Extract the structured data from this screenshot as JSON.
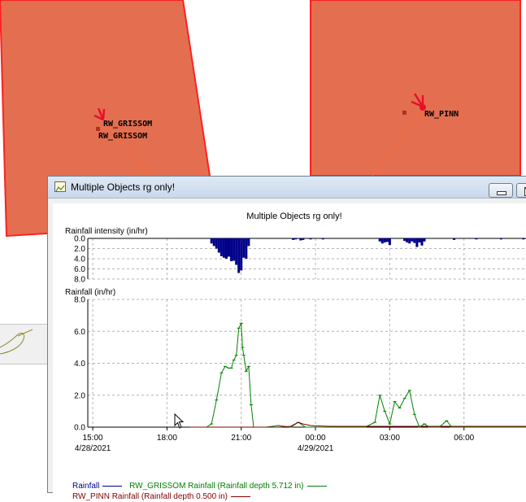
{
  "map": {
    "gauges": [
      {
        "label_1": "RW_GRISSOM",
        "label_2": "RW_GRISSOM"
      },
      {
        "label_1": "RW_PINN"
      }
    ],
    "colors": {
      "polygon_fill": "#e36f50",
      "polygon_border": "#ff2020",
      "gauge": "#e8102a",
      "link": "#ff6a3a"
    }
  },
  "window": {
    "title": "Multiple Objects rg only!"
  },
  "chart_data": [
    {
      "type": "bar",
      "title": "Multiple Objects rg only!",
      "ylabel": "Rainfall intensity (in/hr)",
      "ylim": [
        0,
        8
      ],
      "y_inverted": true,
      "yticks": [
        "0.0",
        "2.0",
        "4.0",
        "6.0",
        "8.0"
      ],
      "grid": true,
      "color": "#00008b",
      "series": [
        {
          "name": "Rainfall",
          "x_hours": [
            19.8,
            19.9,
            20.0,
            20.1,
            20.2,
            20.3,
            20.4,
            20.5,
            20.6,
            20.7,
            20.8,
            20.9,
            21.0,
            21.1,
            21.2,
            21.3,
            23.1,
            23.2,
            23.4,
            23.5,
            23.8,
            24.3,
            26.6,
            26.7,
            26.8,
            26.9,
            27.0,
            27.6,
            27.7,
            27.8,
            27.9,
            28.0,
            28.1,
            28.2,
            28.3,
            28.4,
            29.6,
            30.5,
            31.5,
            32.4
          ],
          "values": [
            1.0,
            1.5,
            2.0,
            2.8,
            3.5,
            3.8,
            4.0,
            3.6,
            4.5,
            4.4,
            5.2,
            6.8,
            6.3,
            3.8,
            4.0,
            1.5,
            0.3,
            0.2,
            0.4,
            0.3,
            0.2,
            0.2,
            0.6,
            1.0,
            0.8,
            0.7,
            1.3,
            0.5,
            0.8,
            1.0,
            0.6,
            0.9,
            1.7,
            0.8,
            1.4,
            0.6,
            0.3,
            0.2,
            0.2,
            0.2
          ]
        }
      ]
    },
    {
      "type": "line",
      "ylabel": "Rainfall (in/hr)",
      "ylim": [
        0,
        8
      ],
      "yticks": [
        "0.0",
        "2.0",
        "4.0",
        "6.0",
        "8.0"
      ],
      "x_range_hours": [
        14.8,
        32.9
      ],
      "xticks": [
        {
          "h": 15,
          "label": "15:00",
          "date": "4/28/2021"
        },
        {
          "h": 18,
          "label": "18:00"
        },
        {
          "h": 21,
          "label": "21:00"
        },
        {
          "h": 24,
          "label": "00:00",
          "date": "4/29/2021"
        },
        {
          "h": 27,
          "label": "03:00"
        },
        {
          "h": 30,
          "label": "06:00"
        }
      ],
      "grid": true,
      "series": [
        {
          "name": "Rainfall",
          "color": "#00008b",
          "values": []
        },
        {
          "name": "RW_GRISSOM Rainfall (Rainfall depth 5.712 in)",
          "color": "#008000",
          "x_hours": [
            19.6,
            19.8,
            20.0,
            20.2,
            20.35,
            20.5,
            20.6,
            20.7,
            20.8,
            20.9,
            21.0,
            21.05,
            21.1,
            21.2,
            21.3,
            21.4,
            21.5,
            22.0,
            22.5,
            23.0,
            23.3,
            23.6,
            24.0,
            26.0,
            26.4,
            26.6,
            26.8,
            27.0,
            27.2,
            27.4,
            27.6,
            27.8,
            28.0,
            28.2,
            28.4,
            28.6,
            29.0,
            29.3,
            29.5,
            29.7,
            30.2,
            32.9
          ],
          "values": [
            0,
            0.2,
            1.7,
            3.4,
            3.8,
            3.7,
            3.7,
            4.2,
            4.5,
            6.2,
            6.5,
            5.0,
            4.5,
            3.5,
            3.8,
            1.4,
            0,
            0,
            0.1,
            0,
            0.3,
            0,
            0,
            0,
            0.3,
            2.0,
            1.0,
            0.2,
            1.6,
            1.2,
            1.8,
            2.3,
            0.8,
            0,
            0.2,
            0,
            0,
            0.4,
            0,
            0,
            0,
            0
          ]
        },
        {
          "name": "RW_PINN Rainfall (Rainfall depth 0.500 in)",
          "color": "#800000",
          "x_hours": [
            19.0,
            22.5,
            23.0,
            23.3,
            23.5,
            23.8,
            24.0,
            24.6,
            25.2,
            26.0,
            26.6,
            27.0,
            27.6,
            28.3,
            29.0,
            29.6,
            30.2,
            31.0,
            31.6,
            32.4,
            32.9
          ],
          "values": [
            0,
            0,
            0.05,
            0.3,
            0.2,
            0.1,
            0.08,
            0.05,
            0.05,
            0.05,
            0.05,
            0.05,
            0.05,
            0.05,
            0.05,
            0.05,
            0.05,
            0.05,
            0.05,
            0.05,
            0.05
          ]
        }
      ]
    }
  ]
}
